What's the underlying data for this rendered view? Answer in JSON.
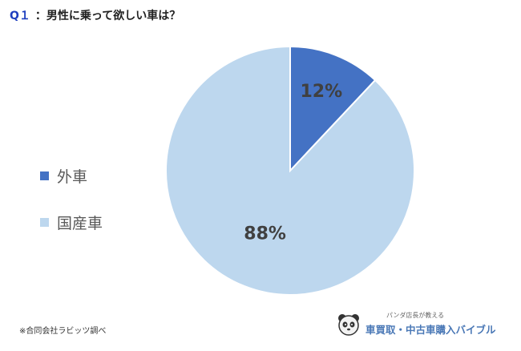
{
  "header": {
    "q_label": "Q１",
    "question": "：男性に乗って欲しい車は？"
  },
  "chart_data": {
    "type": "pie",
    "title": "男性に乗って欲しい車は？",
    "series": [
      {
        "name": "外車",
        "value": 12,
        "label": "12%",
        "color": "#4472c4"
      },
      {
        "name": "国産車",
        "value": 88,
        "label": "88%",
        "color": "#bdd7ee"
      }
    ],
    "legend_position": "left"
  },
  "footnote": "※合同会社ラビッツ調べ",
  "brand": {
    "tagline": "パンダ店長が教える",
    "name": "車買取・中古車購入バイブル"
  }
}
